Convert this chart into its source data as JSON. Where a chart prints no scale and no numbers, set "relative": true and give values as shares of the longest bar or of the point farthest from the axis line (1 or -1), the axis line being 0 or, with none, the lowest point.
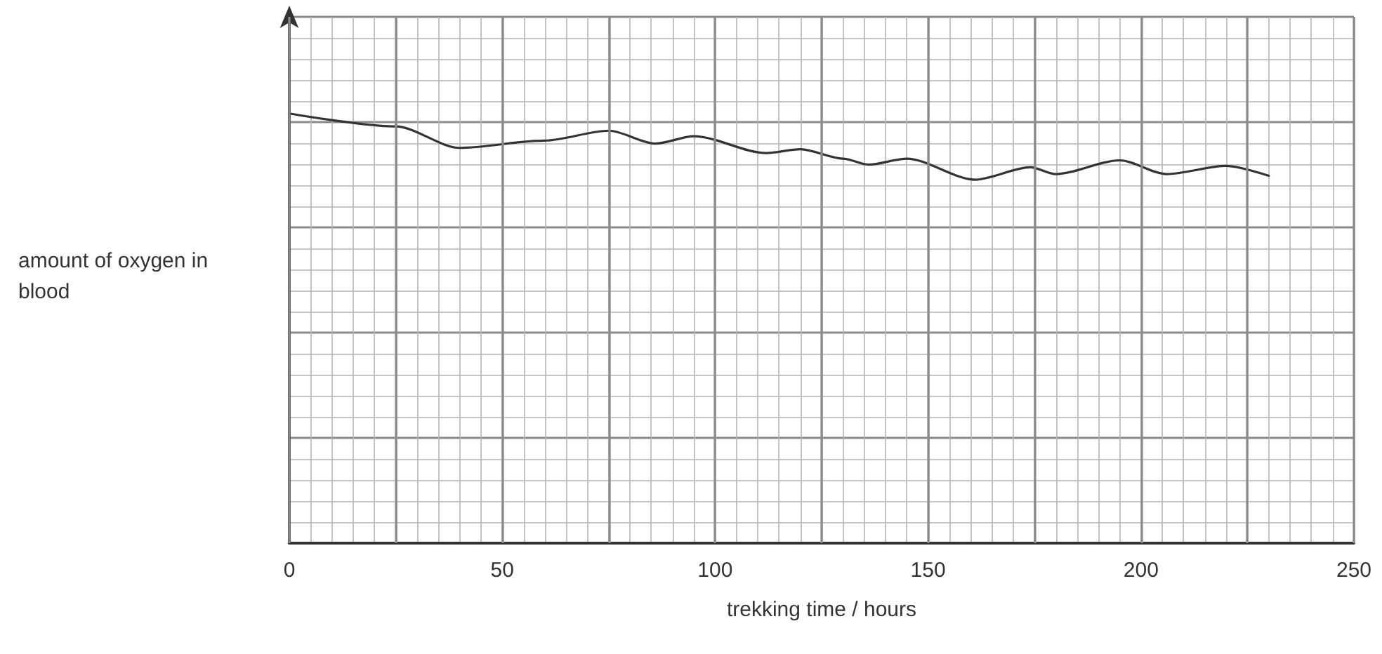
{
  "chart_data": {
    "type": "line",
    "xlabel": "trekking time / hours",
    "ylabel": "amount of oxygen in blood",
    "relative": true,
    "grid": true,
    "marker": "none",
    "line_style": "solid",
    "xlim": [
      0,
      250
    ],
    "xticks": [
      0,
      {
        "value": 25,
        "label": null
      },
      50,
      {
        "value": 75,
        "label": null
      },
      100,
      {
        "value": 125,
        "label": null
      },
      150,
      {
        "value": 175,
        "label": null
      },
      200,
      {
        "value": 225,
        "label": null
      },
      250
    ],
    "series": [
      {
        "color": "#333333",
        "x": [
          0,
          25,
          40,
          60,
          75,
          86,
          95,
          112,
          120,
          130,
          136,
          145,
          161,
          174,
          180,
          195,
          206,
          220,
          230
        ],
        "values": [
          1,
          0.97,
          0.92,
          0.937,
          0.96,
          0.93,
          0.947,
          0.908,
          0.917,
          0.895,
          0.881,
          0.895,
          0.846,
          0.875,
          0.859,
          0.891,
          0.859,
          0.878,
          0.855
        ]
      }
    ]
  }
}
